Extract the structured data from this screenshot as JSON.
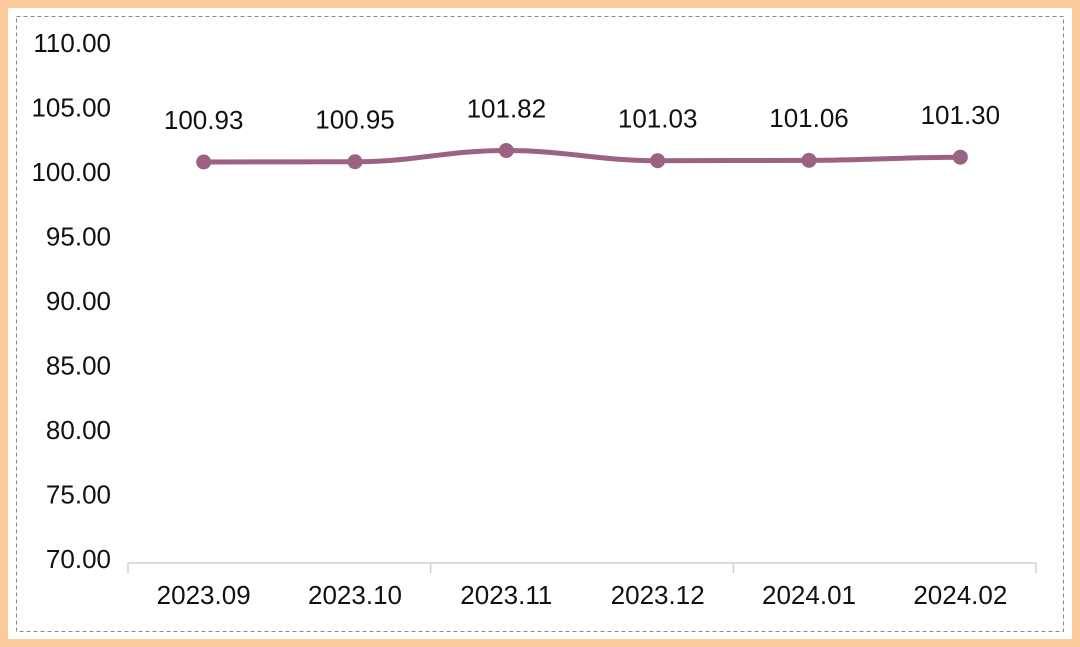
{
  "chart_data": {
    "type": "line",
    "categories": [
      "2023.09",
      "2023.10",
      "2023.11",
      "2023.12",
      "2024.01",
      "2024.02"
    ],
    "series": [
      {
        "color": "#9c6283",
        "values": [
          100.93,
          100.95,
          101.82,
          101.03,
          101.06,
          101.3
        ],
        "value_labels": [
          "100.93",
          "100.95",
          "101.82",
          "101.03",
          "101.06",
          "101.30"
        ]
      }
    ],
    "ylim": [
      70,
      110
    ],
    "yticks": [
      {
        "value": 70,
        "label": "70.00"
      },
      {
        "value": 75,
        "label": "75.00"
      },
      {
        "value": 80,
        "label": "80.00"
      },
      {
        "value": 85,
        "label": "85.00"
      },
      {
        "value": 90,
        "label": "90.00"
      },
      {
        "value": 95,
        "label": "95.00"
      },
      {
        "value": 100,
        "label": "100.00"
      },
      {
        "value": 105,
        "label": "105.00"
      },
      {
        "value": 110,
        "label": "110.00"
      }
    ],
    "grid": false
  }
}
